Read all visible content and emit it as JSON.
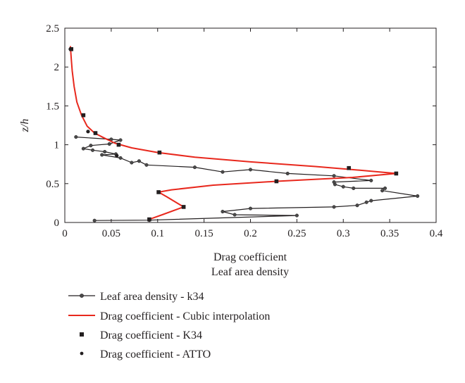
{
  "chart_data": {
    "type": "line",
    "xlabel_lines": [
      "Drag coefficient",
      "Leaf area density"
    ],
    "ylabel": "z/h",
    "xlim": [
      0,
      0.4
    ],
    "ylim": [
      0,
      2.5
    ],
    "x_ticks": [
      0,
      0.05,
      0.1,
      0.15,
      0.2,
      0.25,
      0.3,
      0.35,
      0.4
    ],
    "x_tick_labels": [
      "0",
      "0.05",
      "0.1",
      "0.15",
      "0.2",
      "0.25",
      "0.3",
      "0.35",
      "0.4"
    ],
    "y_ticks": [
      0,
      0.5,
      1,
      1.5,
      2,
      2.5
    ],
    "y_tick_labels": [
      "0",
      "0.5",
      "1",
      "1.5",
      "2",
      "2.5"
    ],
    "grid": false,
    "legend_position": "bottom",
    "series": [
      {
        "name": "Leaf area density - k34",
        "style": "line-circle",
        "color": "#231f20",
        "points": [
          [
            0.032,
            0.025
          ],
          [
            0.091,
            0.03
          ],
          [
            0.25,
            0.09
          ],
          [
            0.183,
            0.1
          ],
          [
            0.17,
            0.14
          ],
          [
            0.2,
            0.18
          ],
          [
            0.29,
            0.2
          ],
          [
            0.315,
            0.22
          ],
          [
            0.325,
            0.26
          ],
          [
            0.33,
            0.28
          ],
          [
            0.38,
            0.34
          ],
          [
            0.342,
            0.41
          ],
          [
            0.345,
            0.44
          ],
          [
            0.311,
            0.44
          ],
          [
            0.3,
            0.46
          ],
          [
            0.291,
            0.49
          ],
          [
            0.29,
            0.52
          ],
          [
            0.33,
            0.54
          ],
          [
            0.29,
            0.6
          ],
          [
            0.24,
            0.63
          ],
          [
            0.2,
            0.68
          ],
          [
            0.17,
            0.65
          ],
          [
            0.14,
            0.71
          ],
          [
            0.088,
            0.74
          ],
          [
            0.08,
            0.79
          ],
          [
            0.072,
            0.77
          ],
          [
            0.06,
            0.83
          ],
          [
            0.04,
            0.87
          ],
          [
            0.055,
            0.88
          ],
          [
            0.043,
            0.91
          ],
          [
            0.03,
            0.93
          ],
          [
            0.02,
            0.95
          ],
          [
            0.028,
            0.99
          ],
          [
            0.048,
            1.01
          ],
          [
            0.06,
            1.06
          ],
          [
            0.05,
            1.07
          ],
          [
            0.012,
            1.1
          ]
        ]
      },
      {
        "name": "Drag coefficient - Cubic interpolation",
        "style": "line",
        "color": "#e8281d",
        "points": [
          [
            0.091,
            0.04
          ],
          [
            0.105,
            0.1
          ],
          [
            0.128,
            0.2
          ],
          [
            0.11,
            0.33
          ],
          [
            0.101,
            0.39
          ],
          [
            0.115,
            0.42
          ],
          [
            0.16,
            0.48
          ],
          [
            0.228,
            0.53
          ],
          [
            0.31,
            0.58
          ],
          [
            0.357,
            0.63
          ],
          [
            0.32,
            0.67
          ],
          [
            0.27,
            0.72
          ],
          [
            0.2,
            0.78
          ],
          [
            0.14,
            0.84
          ],
          [
            0.1,
            0.9
          ],
          [
            0.072,
            0.96
          ],
          [
            0.054,
            1.02
          ],
          [
            0.042,
            1.09
          ],
          [
            0.032,
            1.15
          ],
          [
            0.024,
            1.24
          ],
          [
            0.018,
            1.38
          ],
          [
            0.013,
            1.55
          ],
          [
            0.01,
            1.75
          ],
          [
            0.008,
            1.95
          ],
          [
            0.007,
            2.1
          ],
          [
            0.006,
            2.27
          ]
        ]
      },
      {
        "name": "Drag coefficient - K34",
        "style": "square",
        "color": "#231f20",
        "points": [
          [
            0.091,
            0.04
          ],
          [
            0.128,
            0.2
          ],
          [
            0.101,
            0.39
          ],
          [
            0.228,
            0.53
          ],
          [
            0.357,
            0.63
          ],
          [
            0.306,
            0.7
          ],
          [
            0.102,
            0.9
          ],
          [
            0.058,
            1.0
          ],
          [
            0.033,
            1.15
          ],
          [
            0.02,
            1.38
          ],
          [
            0.007,
            2.23
          ]
        ]
      },
      {
        "name": "Drag coefficient - ATTO",
        "style": "dot",
        "color": "#231f20",
        "points": [
          [
            0.025,
            1.17
          ],
          [
            0.056,
            0.86
          ],
          [
            0.006,
            2.23
          ]
        ]
      }
    ]
  }
}
